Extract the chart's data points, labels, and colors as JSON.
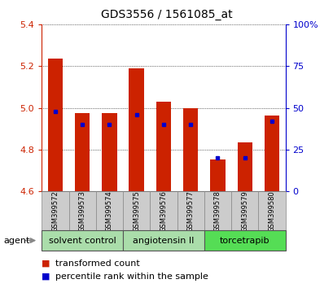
{
  "title": "GDS3556 / 1561085_at",
  "categories": [
    "GSM399572",
    "GSM399573",
    "GSM399574",
    "GSM399575",
    "GSM399576",
    "GSM399577",
    "GSM399578",
    "GSM399579",
    "GSM399580"
  ],
  "bar_values": [
    5.235,
    4.975,
    4.975,
    5.19,
    5.03,
    5.0,
    4.755,
    4.835,
    4.965
  ],
  "percentile_values": [
    48,
    40,
    40,
    46,
    40,
    40,
    20,
    20,
    42
  ],
  "ymin": 4.6,
  "ymax": 5.4,
  "yticks": [
    4.6,
    4.8,
    5.0,
    5.2,
    5.4
  ],
  "right_yticks": [
    0,
    25,
    50,
    75,
    100
  ],
  "right_ylabels": [
    "0",
    "25",
    "50",
    "75",
    "100%"
  ],
  "bar_color": "#cc2200",
  "percentile_color": "#0000cc",
  "background_color": "#ffffff",
  "groups": [
    {
      "label": "solvent control",
      "start": 0,
      "end": 2,
      "color": "#aaddaa"
    },
    {
      "label": "angiotensin II",
      "start": 3,
      "end": 5,
      "color": "#aaddaa"
    },
    {
      "label": "torcetrapib",
      "start": 6,
      "end": 8,
      "color": "#55dd55"
    }
  ],
  "sample_label_bg": "#cccccc",
  "legend_items": [
    "transformed count",
    "percentile rank within the sample"
  ],
  "agent_label": "agent",
  "bar_width": 0.55,
  "left_label_color": "#cc2200",
  "right_label_color": "#0000cc",
  "title_fontsize": 10,
  "axis_fontsize": 8,
  "tick_fontsize": 8,
  "group_fontsize": 8,
  "sample_fontsize": 6,
  "legend_fontsize": 8
}
